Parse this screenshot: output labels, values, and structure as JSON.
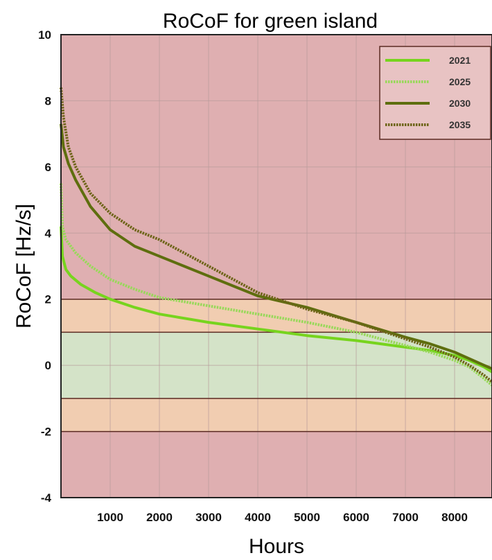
{
  "chart_data": {
    "type": "line",
    "title": "RoCoF for green island",
    "xlabel": "Hours",
    "ylabel": "RoCoF [Hz/s]",
    "xlim": [
      0,
      8760
    ],
    "ylim": [
      -4,
      10
    ],
    "x_ticks": [
      1000,
      2000,
      3000,
      4000,
      5000,
      6000,
      7000,
      8000
    ],
    "y_ticks": [
      -4,
      -2,
      0,
      2,
      4,
      6,
      8,
      10
    ],
    "grid": true,
    "legend_position": "top-right",
    "bands": [
      {
        "from": 2,
        "to": 10,
        "color": "#dfafb1"
      },
      {
        "from": 1,
        "to": 2,
        "color": "#f1cdb1"
      },
      {
        "from": -1,
        "to": 1,
        "color": "#d4e3c8"
      },
      {
        "from": -2,
        "to": -1,
        "color": "#f1cdb1"
      },
      {
        "from": -4,
        "to": -2,
        "color": "#dfafb1"
      }
    ],
    "band_lines": [
      2,
      1,
      -1,
      -2
    ],
    "series": [
      {
        "name": "2021",
        "color": "#77d41e",
        "style": "solid",
        "x": [
          0,
          30,
          100,
          200,
          400,
          700,
          1000,
          1500,
          2000,
          3000,
          4000,
          5000,
          6000,
          7000,
          7500,
          8000,
          8300,
          8600,
          8760
        ],
        "y": [
          4.2,
          3.3,
          2.9,
          2.7,
          2.45,
          2.2,
          2.0,
          1.75,
          1.55,
          1.3,
          1.1,
          0.9,
          0.75,
          0.55,
          0.45,
          0.3,
          0.15,
          -0.05,
          -0.2
        ]
      },
      {
        "name": "2025",
        "color": "#98d85a",
        "style": "dotted",
        "x": [
          0,
          30,
          100,
          300,
          600,
          1000,
          1500,
          2000,
          3000,
          4000,
          5000,
          6000,
          7000,
          7500,
          8000,
          8300,
          8600,
          8760
        ],
        "y": [
          5.5,
          4.2,
          3.8,
          3.4,
          3.0,
          2.6,
          2.3,
          2.05,
          1.8,
          1.55,
          1.3,
          1.0,
          0.6,
          0.4,
          0.15,
          -0.05,
          -0.4,
          -0.6
        ]
      },
      {
        "name": "2030",
        "color": "#5e6e0e",
        "style": "solid",
        "x": [
          0,
          50,
          150,
          300,
          600,
          1000,
          1500,
          2000,
          2500,
          3000,
          3500,
          4000,
          5000,
          6000,
          7000,
          7500,
          8000,
          8300,
          8600,
          8760
        ],
        "y": [
          7.3,
          6.6,
          6.1,
          5.6,
          4.8,
          4.1,
          3.6,
          3.3,
          3.0,
          2.7,
          2.4,
          2.1,
          1.75,
          1.3,
          0.85,
          0.65,
          0.4,
          0.2,
          0.0,
          -0.1
        ]
      },
      {
        "name": "2035",
        "color": "#6d6418",
        "style": "dotted",
        "x": [
          0,
          50,
          150,
          300,
          600,
          1000,
          1500,
          2000,
          2500,
          3000,
          3500,
          4000,
          5000,
          6000,
          7000,
          7500,
          8000,
          8300,
          8600,
          8760
        ],
        "y": [
          8.4,
          7.5,
          6.6,
          6.0,
          5.2,
          4.6,
          4.1,
          3.8,
          3.4,
          3.0,
          2.6,
          2.2,
          1.7,
          1.3,
          0.8,
          0.55,
          0.25,
          0.0,
          -0.3,
          -0.5
        ]
      }
    ]
  }
}
